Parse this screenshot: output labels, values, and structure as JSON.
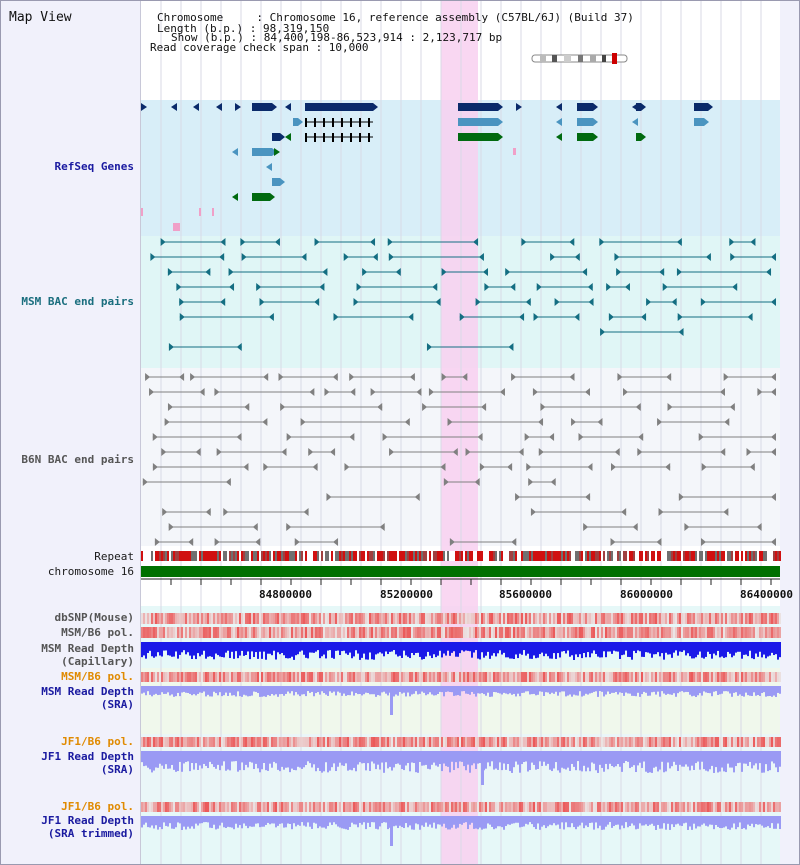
{
  "view_title": "Map View",
  "header": {
    "chromosome_line": "Chromosome     : Chromosome 16, reference assembly (C57BL/6J) (Build 37)",
    "length_line": "Length (b.p.) : 98,319,150",
    "show_line": "Show (b.p.) : 84,400,198-86,523,914 : 2,123,717 bp",
    "coverage_line": "Read coverage check span : 10,000"
  },
  "tracks": {
    "refseq": "RefSeq Genes",
    "msm_bac": "MSM BAC end pairs",
    "b6n_bac": "B6N BAC end pairs",
    "repeat": "Repeat",
    "chromosome": "chromosome 16",
    "dbsnp": "dbSNP(Mouse)",
    "msm_b6_pol": "MSM/B6 pol.",
    "msm_read_depth_cap_1": "MSM Read Depth",
    "msm_read_depth_cap_2": "(Capillary)",
    "msm_b6_pol_2": "MSM/B6 pol.",
    "msm_read_depth_sra_1": "MSM Read Depth",
    "msm_read_depth_sra_2": "(SRA)",
    "jf1_b6_pol": "JF1/B6 pol.",
    "jf1_read_depth_sra_1": "JF1 Read Depth",
    "jf1_read_depth_sra_2": "(SRA)",
    "jf1_b6_pol_2": "JF1/B6 pol.",
    "jf1_read_depth_trim_1": "JF1 Read Depth",
    "jf1_read_depth_trim_2": "(SRA trimmed)"
  },
  "axis_ticks": [
    "84800000",
    "85200000",
    "85600000",
    "86000000",
    "86400000"
  ],
  "colors": {
    "refseq_bg": "#d8eef8",
    "msm_bg": "#e0f6f6",
    "highlight": "#f8d0f0",
    "chromosome_bar": "#007000",
    "gene_dark": "#0a2a6a",
    "gene_mid": "#4a94c0",
    "gene_green": "#006a10",
    "msm_line": "#146e82",
    "b6n_line": "#808080",
    "depth_cap": "#1a1ae8",
    "depth_sra": "#9a9af4"
  }
}
